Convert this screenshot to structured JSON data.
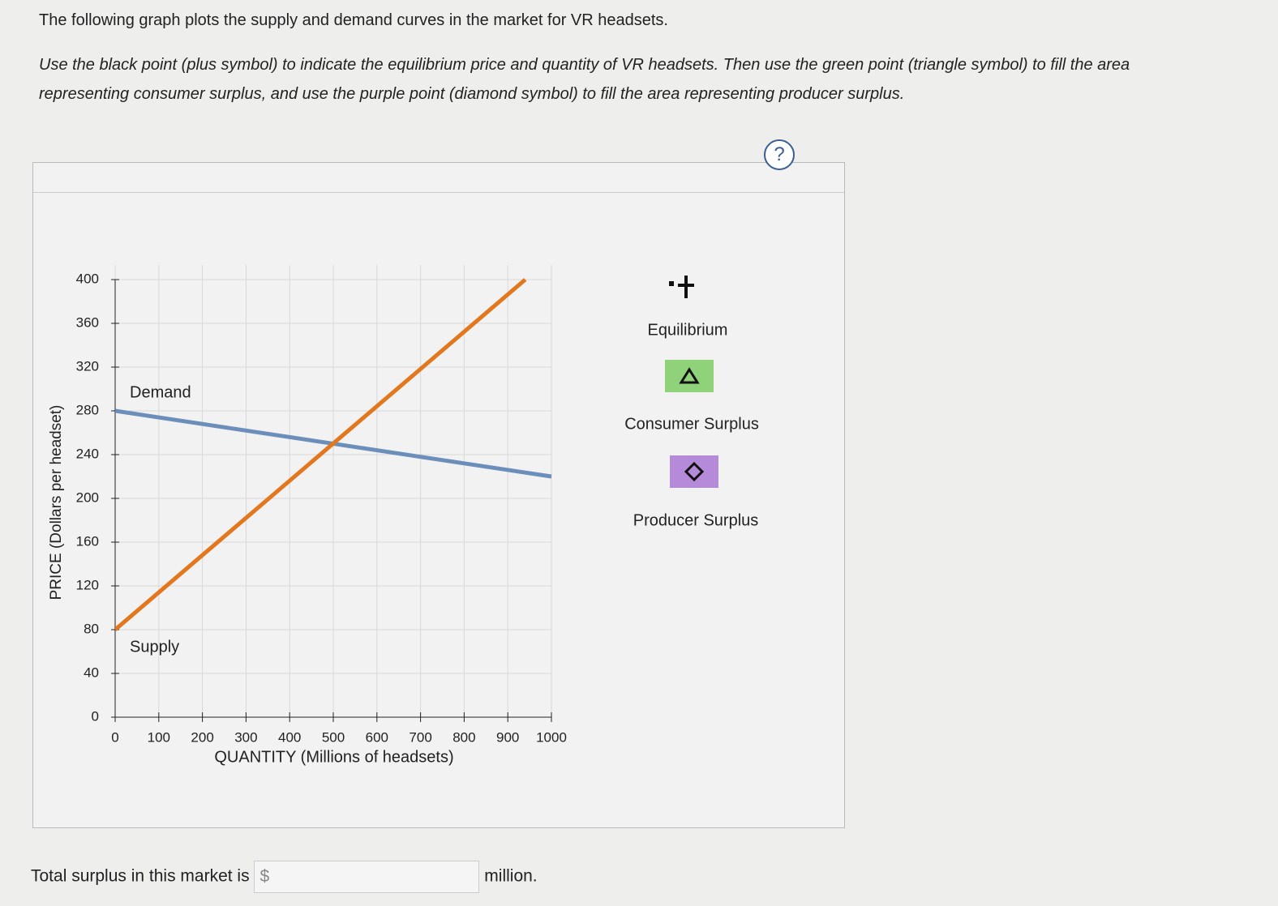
{
  "intro": "The following graph plots the supply and demand curves in the market for VR headsets.",
  "instructions": "Use the black point (plus symbol) to indicate the equilibrium price and quantity of VR headsets. Then use the green point (triangle symbol) to fill the area representing consumer surplus, and use the purple point (diamond symbol) to fill the area representing producer surplus.",
  "help": "?",
  "tools": [
    "Equilibrium",
    "Consumer Surplus",
    "Producer Surplus"
  ],
  "answer": {
    "prompt": "Total surplus in this market is",
    "currency": "$",
    "unit": "million."
  },
  "chart_data": {
    "type": "line",
    "xlabel": "QUANTITY (Millions of headsets)",
    "ylabel": "PRICE (Dollars per headset)",
    "xlim": [
      0,
      1000
    ],
    "xticks": [
      0,
      100,
      200,
      300,
      400,
      500,
      600,
      700,
      800,
      900,
      1000
    ],
    "ylim": [
      0,
      400
    ],
    "yticks": [
      0,
      40,
      80,
      120,
      160,
      200,
      240,
      280,
      320,
      360,
      400
    ],
    "grid": true,
    "series": [
      {
        "name": "Demand",
        "color": "#6b8fba",
        "x": [
          0,
          1000
        ],
        "values": [
          280,
          220
        ]
      },
      {
        "name": "Supply",
        "color": "#e2771d",
        "x": [
          0,
          940
        ],
        "values": [
          80,
          400
        ]
      }
    ]
  }
}
